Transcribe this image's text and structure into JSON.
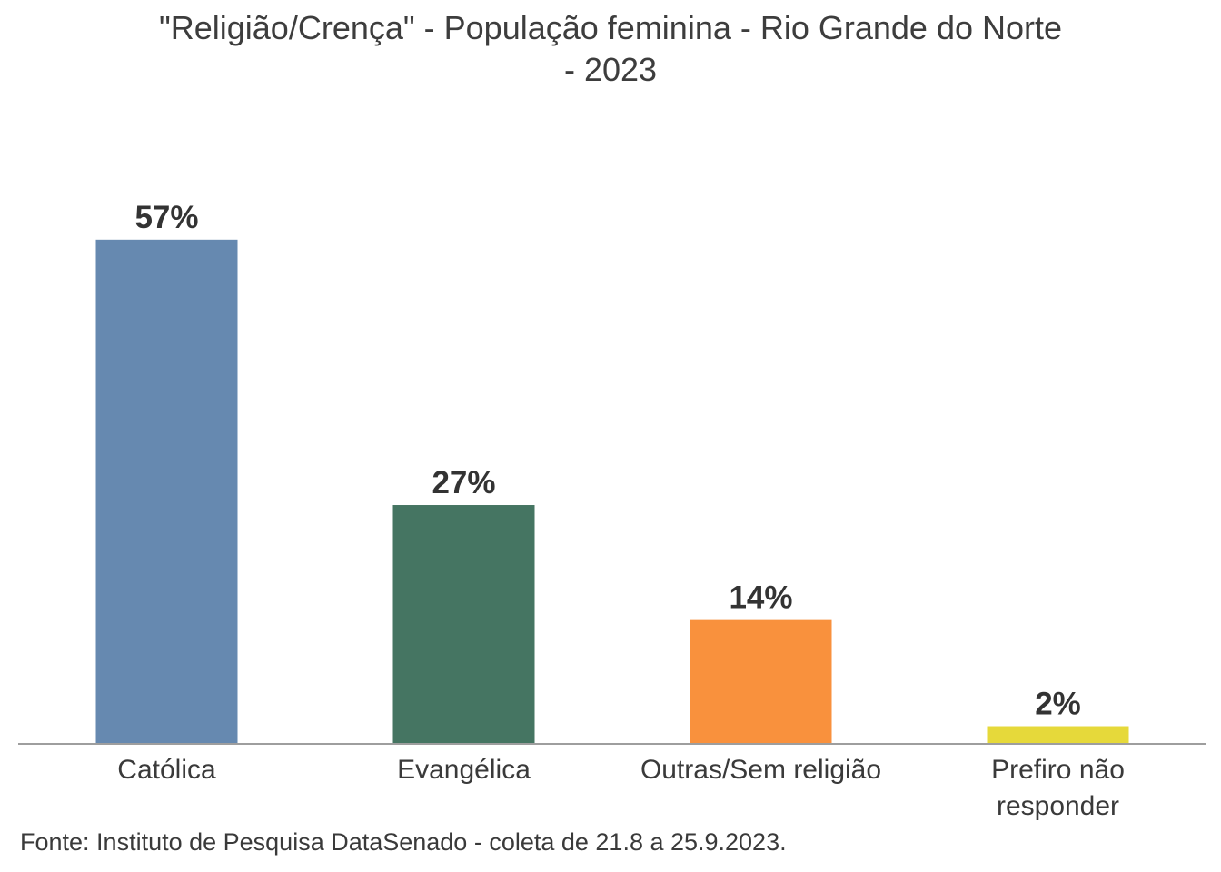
{
  "chart_data": {
    "type": "bar",
    "title_lines": [
      "\"Religião/Crença\" - População feminina - Rio Grande do Norte",
      "- 2023"
    ],
    "categories": [
      "Católica",
      "Evangélica",
      "Outras/Sem religião",
      "Prefiro não responder"
    ],
    "category_lines": [
      [
        "Católica"
      ],
      [
        "Evangélica"
      ],
      [
        "Outras/Sem religião"
      ],
      [
        "Prefiro não",
        "responder"
      ]
    ],
    "values": [
      57,
      27,
      14,
      2
    ],
    "value_labels": [
      "57%",
      "27%",
      "14%",
      "2%"
    ],
    "colors": [
      "#6689b0",
      "#457562",
      "#f9913d",
      "#e6d93a"
    ],
    "xlabel": "",
    "ylabel": "",
    "ylim": [
      0,
      70
    ],
    "grid": false,
    "legend": "none"
  },
  "source": "Fonte: Instituto de Pesquisa DataSenado - coleta de 21.8 a 25.9.2023."
}
